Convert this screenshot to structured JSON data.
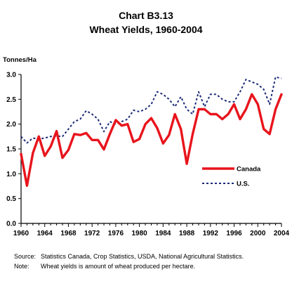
{
  "chart_data": {
    "type": "line",
    "title": "Chart B3.13",
    "subtitle": "Wheat Yields, 1960-2004",
    "ylabel": "Tonnes/Ha",
    "xlabel": "",
    "xlim": [
      1960,
      2004
    ],
    "ylim": [
      0.0,
      3.0
    ],
    "x_ticks": [
      "1960",
      "1964",
      "1968",
      "1972",
      "1976",
      "1980",
      "1984",
      "1988",
      "1992",
      "1996",
      "2000",
      "2004"
    ],
    "y_ticks": [
      "0.0",
      "0.5",
      "1.0",
      "1.5",
      "2.0",
      "2.5",
      "3.0"
    ],
    "grid": false,
    "legend_position": "right",
    "x": [
      1960,
      1961,
      1962,
      1963,
      1964,
      1965,
      1966,
      1967,
      1968,
      1969,
      1970,
      1971,
      1972,
      1973,
      1974,
      1975,
      1976,
      1977,
      1978,
      1979,
      1980,
      1981,
      1982,
      1983,
      1984,
      1985,
      1986,
      1987,
      1988,
      1989,
      1990,
      1991,
      1992,
      1993,
      1994,
      1995,
      1996,
      1997,
      1998,
      1999,
      2000,
      2001,
      2002,
      2003,
      2004
    ],
    "series": [
      {
        "name": "Canada",
        "color": "#e8141c",
        "style": "solid",
        "values": [
          1.4,
          0.76,
          1.42,
          1.75,
          1.36,
          1.55,
          1.86,
          1.32,
          1.48,
          1.8,
          1.78,
          1.82,
          1.68,
          1.68,
          1.49,
          1.8,
          2.08,
          1.97,
          2.0,
          1.64,
          1.7,
          2.0,
          2.12,
          1.92,
          1.61,
          1.78,
          2.2,
          1.9,
          1.2,
          1.8,
          2.3,
          2.3,
          2.2,
          2.2,
          2.1,
          2.2,
          2.4,
          2.1,
          2.3,
          2.6,
          2.4,
          1.9,
          1.8,
          2.3,
          2.6
        ]
      },
      {
        "name": "U.S.",
        "color": "#1c2a78",
        "style": "dotted",
        "values": [
          1.75,
          1.62,
          1.72,
          1.7,
          1.72,
          1.75,
          1.76,
          1.75,
          1.9,
          2.05,
          2.1,
          2.27,
          2.2,
          2.1,
          1.85,
          2.05,
          2.0,
          2.05,
          2.1,
          2.28,
          2.25,
          2.3,
          2.4,
          2.65,
          2.6,
          2.5,
          2.35,
          2.55,
          2.3,
          2.2,
          2.65,
          2.35,
          2.6,
          2.6,
          2.5,
          2.45,
          2.45,
          2.65,
          2.9,
          2.85,
          2.8,
          2.7,
          2.4,
          2.95,
          2.92
        ]
      }
    ]
  },
  "footer": {
    "source_label": "Source:",
    "source_text": "Statistics Canada, Crop Statistics, USDA, National Agricultural Statistics.",
    "note_label": "Note:",
    "note_text": "Wheat yields is amount of wheat produced per hectare."
  }
}
